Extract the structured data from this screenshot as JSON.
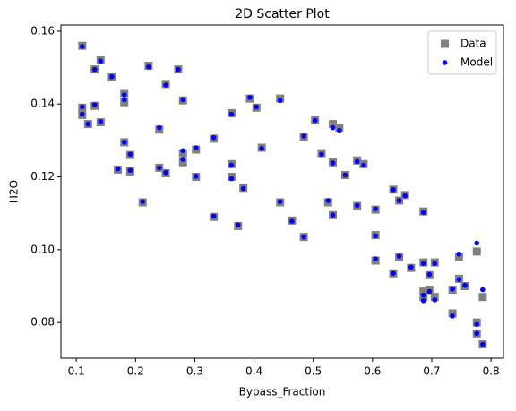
{
  "chart_data": {
    "type": "scatter",
    "title": "2D Scatter Plot",
    "x_label": "Bypass_Fraction",
    "y_label": "H2O",
    "xlim": [
      0.074,
      0.821
    ],
    "ylim": [
      0.0702,
      0.1617
    ],
    "xticks": [
      0.1,
      0.2,
      0.3,
      0.4,
      0.5,
      0.6,
      0.7,
      0.8
    ],
    "yticks": [
      0.08,
      {
        "value": 0.1,
        "label": "0.10"
      },
      0.12,
      0.14,
      0.16
    ],
    "legend": "upper right",
    "series": [
      {
        "name": "Data",
        "color": "#808080",
        "marker": "square",
        "x": [
          0.11,
          0.11,
          0.11,
          0.12,
          0.131,
          0.131,
          0.141,
          0.141,
          0.16,
          0.17,
          0.181,
          0.181,
          0.181,
          0.191,
          0.191,
          0.212,
          0.222,
          0.24,
          0.24,
          0.251,
          0.251,
          0.272,
          0.28,
          0.28,
          0.28,
          0.302,
          0.302,
          0.332,
          0.332,
          0.362,
          0.362,
          0.362,
          0.373,
          0.382,
          0.393,
          0.404,
          0.413,
          0.444,
          0.444,
          0.464,
          0.484,
          0.484,
          0.503,
          0.514,
          0.525,
          0.533,
          0.533,
          0.533,
          0.544,
          0.554,
          0.574,
          0.574,
          0.585,
          0.605,
          0.605,
          0.605,
          0.635,
          0.635,
          0.645,
          0.645,
          0.655,
          0.665,
          0.686,
          0.686,
          0.686,
          0.686,
          0.696,
          0.696,
          0.705,
          0.705,
          0.735,
          0.735,
          0.746,
          0.746,
          0.756,
          0.776,
          0.776,
          0.776,
          0.786,
          0.786
        ],
        "values": [
          0.156,
          0.139,
          0.137,
          0.1345,
          0.1495,
          0.1395,
          0.152,
          0.135,
          0.1475,
          0.122,
          0.143,
          0.1405,
          0.1295,
          0.126,
          0.1215,
          0.113,
          0.1505,
          0.133,
          0.1225,
          0.1455,
          0.121,
          0.1495,
          0.141,
          0.1265,
          0.124,
          0.1275,
          0.12,
          0.1305,
          0.109,
          0.1375,
          0.1235,
          0.12,
          0.1065,
          0.117,
          0.1415,
          0.139,
          0.128,
          0.1415,
          0.113,
          0.108,
          0.131,
          0.1035,
          0.1355,
          0.1265,
          0.113,
          0.1345,
          0.124,
          0.1095,
          0.1335,
          0.1205,
          0.1245,
          0.112,
          0.1235,
          0.111,
          0.104,
          0.097,
          0.1165,
          0.0935,
          0.1135,
          0.098,
          0.115,
          0.095,
          0.1105,
          0.0965,
          0.0885,
          0.087,
          0.089,
          0.093,
          0.0965,
          0.087,
          0.0825,
          0.089,
          0.098,
          0.092,
          0.09,
          0.0995,
          0.08,
          0.077,
          0.087,
          0.074
        ]
      },
      {
        "name": "Model",
        "color": "#0000ff",
        "marker": "circle",
        "x": [
          0.11,
          0.11,
          0.11,
          0.12,
          0.131,
          0.131,
          0.141,
          0.141,
          0.16,
          0.17,
          0.181,
          0.181,
          0.181,
          0.191,
          0.191,
          0.212,
          0.222,
          0.24,
          0.24,
          0.251,
          0.251,
          0.272,
          0.28,
          0.28,
          0.28,
          0.302,
          0.302,
          0.332,
          0.332,
          0.362,
          0.362,
          0.362,
          0.373,
          0.382,
          0.393,
          0.404,
          0.413,
          0.444,
          0.444,
          0.464,
          0.484,
          0.484,
          0.503,
          0.514,
          0.525,
          0.533,
          0.533,
          0.533,
          0.544,
          0.554,
          0.574,
          0.574,
          0.585,
          0.605,
          0.605,
          0.605,
          0.635,
          0.635,
          0.645,
          0.645,
          0.655,
          0.665,
          0.686,
          0.686,
          0.686,
          0.686,
          0.696,
          0.696,
          0.705,
          0.705,
          0.735,
          0.735,
          0.746,
          0.746,
          0.756,
          0.776,
          0.776,
          0.776,
          0.786,
          0.786
        ],
        "values": [
          0.1558,
          0.1392,
          0.1372,
          0.1345,
          0.1495,
          0.1398,
          0.1518,
          0.1352,
          0.1475,
          0.1222,
          0.1425,
          0.1412,
          0.1295,
          0.1262,
          0.1218,
          0.1132,
          0.1502,
          0.1335,
          0.1225,
          0.1452,
          0.1212,
          0.1495,
          0.1412,
          0.1272,
          0.1248,
          0.128,
          0.1202,
          0.1308,
          0.1092,
          0.1372,
          0.1232,
          0.1195,
          0.1068,
          0.1168,
          0.1418,
          0.1392,
          0.1278,
          0.141,
          0.1132,
          0.1078,
          0.1312,
          0.1035,
          0.1355,
          0.1262,
          0.1135,
          0.1335,
          0.1238,
          0.1095,
          0.1328,
          0.1205,
          0.1242,
          0.1122,
          0.1232,
          0.1112,
          0.1038,
          0.0975,
          0.1165,
          0.0935,
          0.1135,
          0.0982,
          0.1148,
          0.0952,
          0.1102,
          0.0962,
          0.0875,
          0.086,
          0.0885,
          0.0932,
          0.0962,
          0.0862,
          0.0818,
          0.0892,
          0.0988,
          0.0918,
          0.0902,
          0.1018,
          0.0795,
          0.077,
          0.089,
          0.074
        ]
      }
    ]
  }
}
